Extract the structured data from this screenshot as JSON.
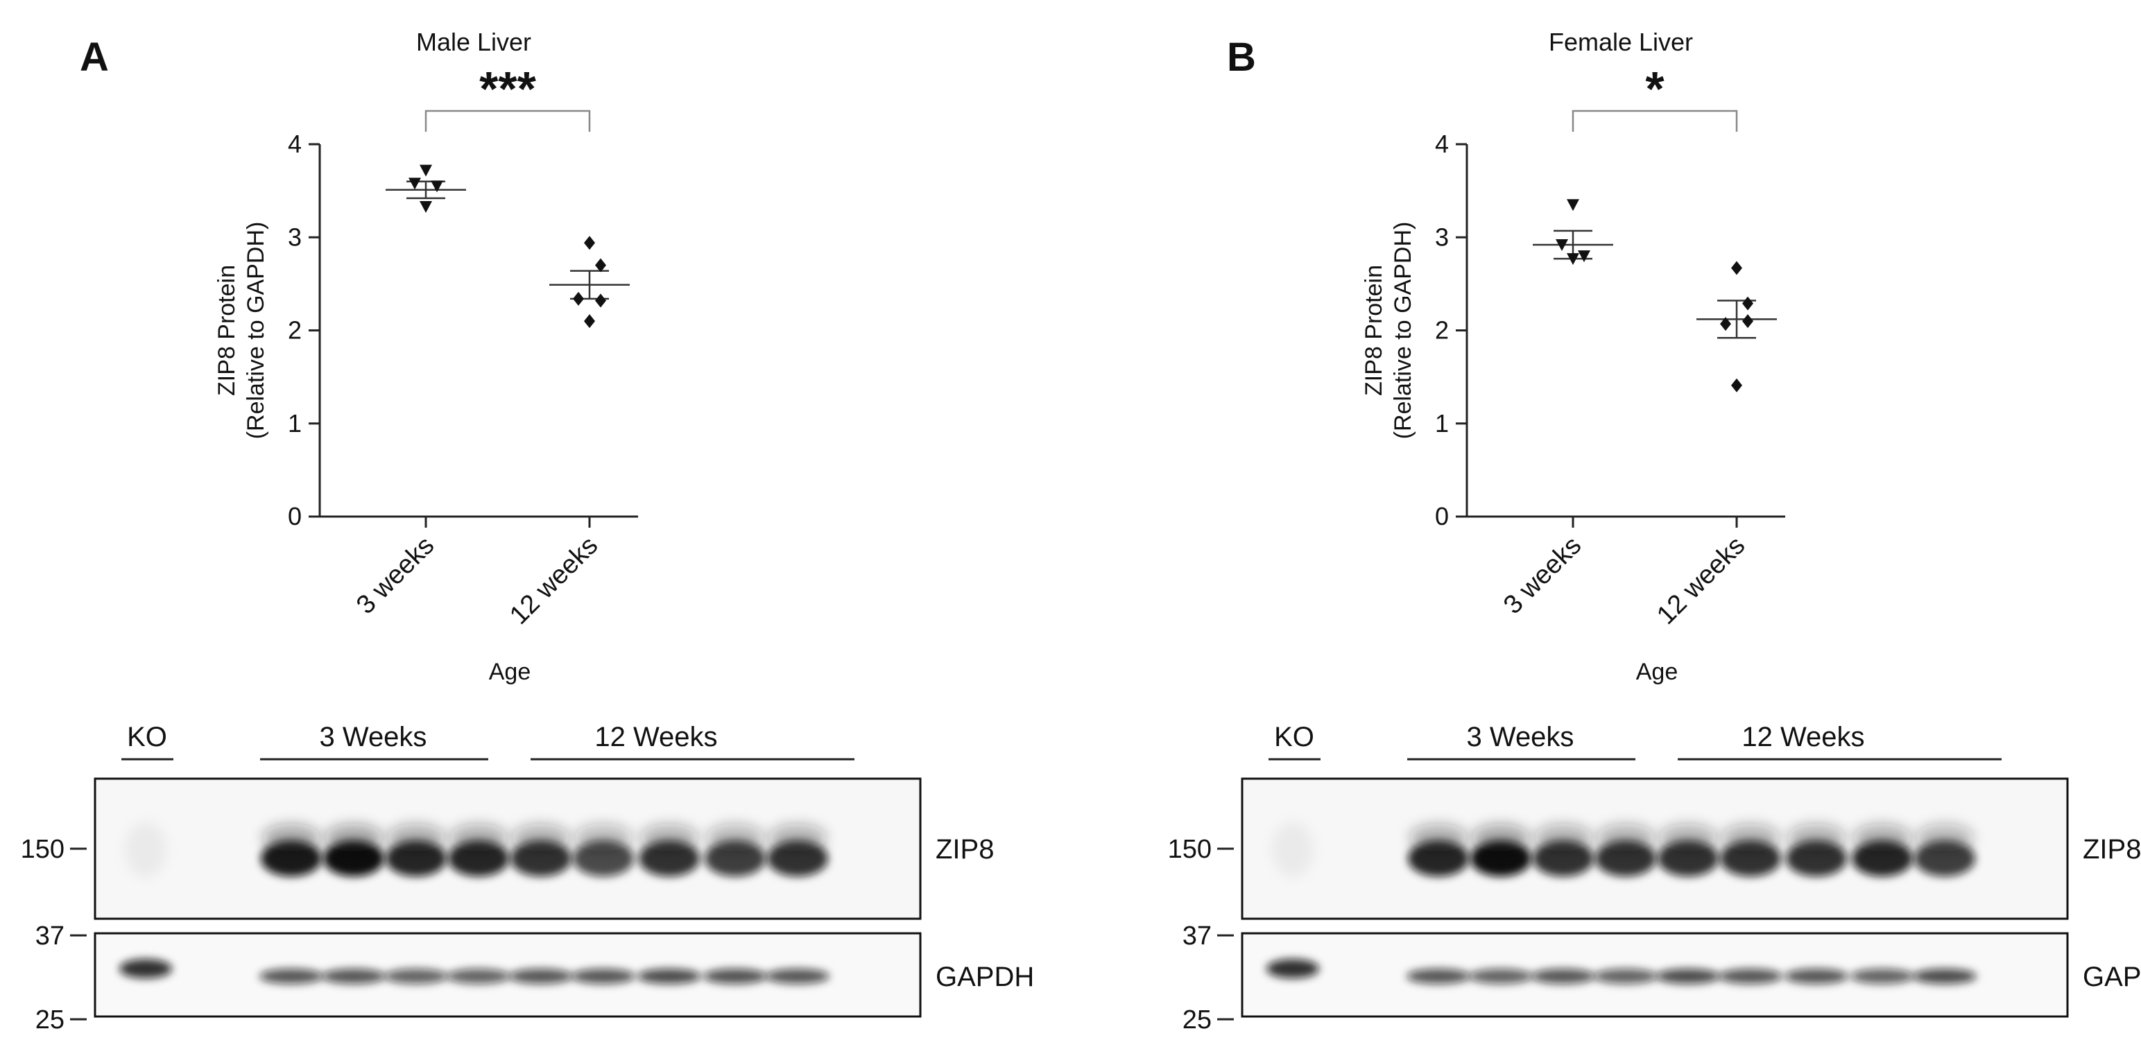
{
  "panels": [
    {
      "id": "A",
      "letter": "A",
      "chart_data": {
        "type": "scatter",
        "title": "Male Liver",
        "xlabel": "Age",
        "ylabel": [
          "ZIP8 Protein",
          "(Relative to GAPDH)"
        ],
        "ylim": [
          0,
          4
        ],
        "yticks": [
          "0",
          "1",
          "2",
          "3",
          "4"
        ],
        "categories": [
          "3 weeks",
          "12 weeks"
        ],
        "groups": [
          {
            "category": "3 weeks",
            "marker": "triangle-down",
            "points": [
              3.72,
              3.58,
              3.55,
              3.33
            ],
            "mean": 3.51,
            "sem": 0.09
          },
          {
            "category": "12 weeks",
            "marker": "diamond",
            "points": [
              2.94,
              2.7,
              2.34,
              2.32,
              2.1
            ],
            "mean": 2.49,
            "sem": 0.15
          }
        ],
        "significance": "***",
        "grid": false,
        "legend": "none"
      },
      "blot": {
        "ko_label": "KO",
        "group1_label": "3 Weeks",
        "group2_label": "12 Weeks",
        "protein1": "ZIP8",
        "protein2": "GAPDH",
        "mw_markers": [
          "150",
          "37",
          "25"
        ],
        "zip8_intensity": [
          0.05,
          0,
          0.95,
          1.0,
          0.9,
          0.9,
          0.85,
          0.75,
          0.85,
          0.8,
          0.85
        ],
        "gapdh_intensity": [
          0.85,
          0,
          0.7,
          0.7,
          0.65,
          0.65,
          0.7,
          0.7,
          0.75,
          0.72,
          0.7
        ]
      }
    },
    {
      "id": "B",
      "letter": "B",
      "chart_data": {
        "type": "scatter",
        "title": "Female Liver",
        "xlabel": "Age",
        "ylabel": [
          "ZIP8 Protein",
          "(Relative to GAPDH)"
        ],
        "ylim": [
          0,
          4
        ],
        "yticks": [
          "0",
          "1",
          "2",
          "3",
          "4"
        ],
        "categories": [
          "3 weeks",
          "12 weeks"
        ],
        "groups": [
          {
            "category": "3 weeks",
            "marker": "triangle-down",
            "points": [
              3.35,
              2.92,
              2.8,
              2.77
            ],
            "mean": 2.92,
            "sem": 0.15
          },
          {
            "category": "12 weeks",
            "marker": "diamond",
            "points": [
              2.67,
              2.29,
              2.07,
              2.1,
              1.41
            ],
            "mean": 2.12,
            "sem": 0.2
          }
        ],
        "significance": "*",
        "grid": false,
        "legend": "none"
      },
      "blot": {
        "ko_label": "KO",
        "group1_label": "3 Weeks",
        "group2_label": "12 Weeks",
        "protein1": "ZIP8",
        "protein2": "GAPDH",
        "mw_markers": [
          "150",
          "37",
          "25"
        ],
        "zip8_intensity": [
          0.05,
          0,
          0.9,
          1.0,
          0.85,
          0.85,
          0.85,
          0.85,
          0.85,
          0.9,
          0.8
        ],
        "gapdh_intensity": [
          0.85,
          0,
          0.7,
          0.65,
          0.7,
          0.65,
          0.75,
          0.7,
          0.7,
          0.65,
          0.75
        ]
      }
    }
  ]
}
